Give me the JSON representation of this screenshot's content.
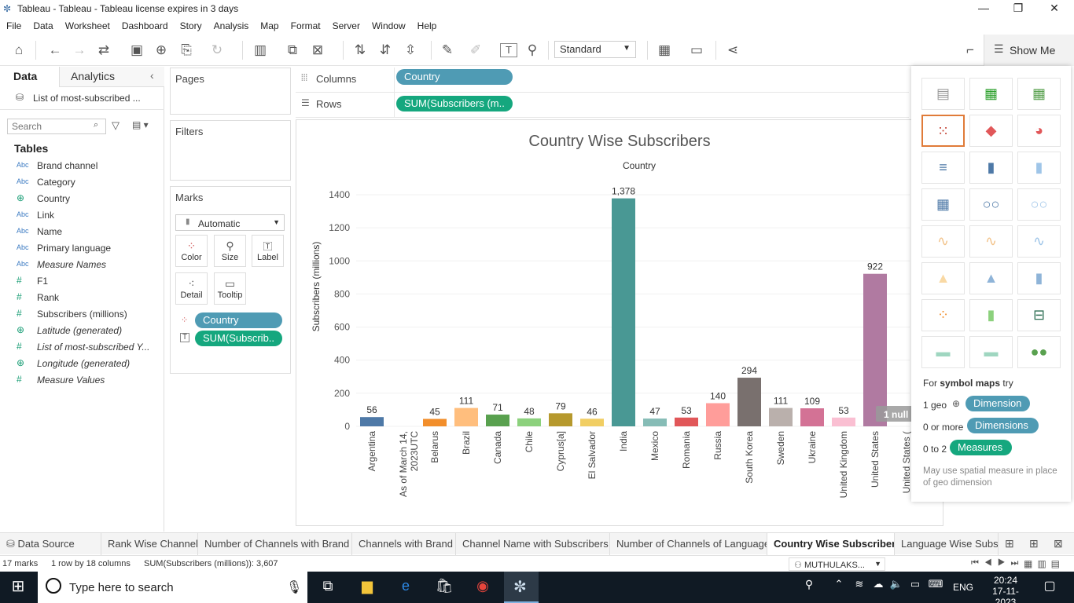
{
  "window": {
    "title": "Tableau - Tableau - Tableau license expires in 3 days"
  },
  "menu": [
    "File",
    "Data",
    "Worksheet",
    "Dashboard",
    "Story",
    "Analysis",
    "Map",
    "Format",
    "Server",
    "Window",
    "Help"
  ],
  "toolbar": {
    "fit_select": "Standard",
    "show_me": "Show Me"
  },
  "left_panel": {
    "tab_data": "Data",
    "tab_analytics": "Analytics",
    "datasource": "List of most-subscribed ...",
    "search_placeholder": "Search",
    "tables_label": "Tables",
    "fields": [
      {
        "type": "Abc",
        "name": "Brand channel",
        "italic": false
      },
      {
        "type": "Abc",
        "name": "Category",
        "italic": false
      },
      {
        "type": "geo",
        "name": "Country",
        "italic": false
      },
      {
        "type": "Abc",
        "name": "Link",
        "italic": false
      },
      {
        "type": "Abc",
        "name": "Name",
        "italic": false
      },
      {
        "type": "Abc",
        "name": "Primary language",
        "italic": false
      },
      {
        "type": "Abc",
        "name": "Measure Names",
        "italic": true
      },
      {
        "type": "#",
        "name": "F1",
        "italic": false
      },
      {
        "type": "#",
        "name": "Rank",
        "italic": false
      },
      {
        "type": "#",
        "name": "Subscribers (millions)",
        "italic": false
      },
      {
        "type": "geo",
        "name": "Latitude (generated)",
        "italic": true
      },
      {
        "type": "#",
        "name": "List of most-subscribed Y...",
        "italic": true
      },
      {
        "type": "geo",
        "name": "Longitude (generated)",
        "italic": true
      },
      {
        "type": "#",
        "name": "Measure Values",
        "italic": true
      }
    ]
  },
  "cards": {
    "pages": "Pages",
    "filters": "Filters",
    "marks": "Marks",
    "mark_type": "Automatic",
    "buttons": [
      "Color",
      "Size",
      "Label",
      "Detail",
      "Tooltip"
    ],
    "pills": [
      "Country",
      "SUM(Subscrib.."
    ]
  },
  "shelves": {
    "columns_label": "Columns",
    "columns_pill": "Country",
    "rows_label": "Rows",
    "rows_pill": "SUM(Subscribers (m.."
  },
  "chart_data": {
    "type": "bar",
    "title": "Country Wise Subscribers",
    "header": "Country",
    "ylabel": "Subscribers (millions)",
    "ylim": [
      0,
      1500
    ],
    "yticks": [
      0,
      200,
      400,
      600,
      800,
      1000,
      1200,
      1400
    ],
    "categories": [
      "Argentina",
      "As of March 14, 2023UTC",
      "Belarus",
      "Brazil",
      "Canada",
      "Chile",
      "Cyprus[a]",
      "El Salvador",
      "India",
      "Mexico",
      "Romania",
      "Russia",
      "South Korea",
      "Sweden",
      "Ukraine",
      "United Kingdom",
      "United States",
      "United States ("
    ],
    "values": [
      56,
      null,
      45,
      111,
      71,
      48,
      79,
      46,
      1378,
      47,
      53,
      140,
      294,
      111,
      109,
      53,
      922,
      null
    ],
    "labels": [
      "56",
      "",
      "45",
      "111",
      "71",
      "48",
      "79",
      "46",
      "1,378",
      "47",
      "53",
      "140",
      "294",
      "111",
      "109",
      "53",
      "922",
      ""
    ],
    "colors": [
      "#4e79a7",
      "#4e79a7",
      "#f28e2b",
      "#ffbe7d",
      "#59a14f",
      "#8cd17d",
      "#b6992d",
      "#f1ce63",
      "#499894",
      "#86bcb6",
      "#e15759",
      "#ff9d9a",
      "#79706e",
      "#bab0ac",
      "#d37295",
      "#fabfd2",
      "#b07aa1",
      "#d4a6c8"
    ],
    "null_indicator": "1 null"
  },
  "show_me": {
    "hint_prefix": "For",
    "hint_bold": "symbol maps",
    "hint_suffix": "try",
    "rows": [
      {
        "label": "1 geo",
        "pill": "Dimension"
      },
      {
        "label": "0 or more",
        "pill": "Dimensions"
      },
      {
        "label": "0 to 2",
        "pill": "Measures"
      }
    ],
    "note": "May use spatial measure in place of geo dimension"
  },
  "sheet_tabs": [
    "Data Source",
    "Rank Wise Channel",
    "Number of Channels with Brand",
    "Channels with Brand",
    "Channel Name with Subscribers",
    "Number of Channels of Language",
    "Country Wise Subscribers",
    "Language Wise Subscr"
  ],
  "active_tab": "Country Wise Subscribers",
  "status": {
    "marks": "17 marks",
    "dims": "1 row by 18 columns",
    "sum": "SUM(Subscribers (millions)): 3,607",
    "user": "MUTHULAKS..."
  },
  "taskbar": {
    "search_placeholder": "Type here to search",
    "lang": "ENG",
    "time": "20:24",
    "date": "17-11-2023"
  }
}
